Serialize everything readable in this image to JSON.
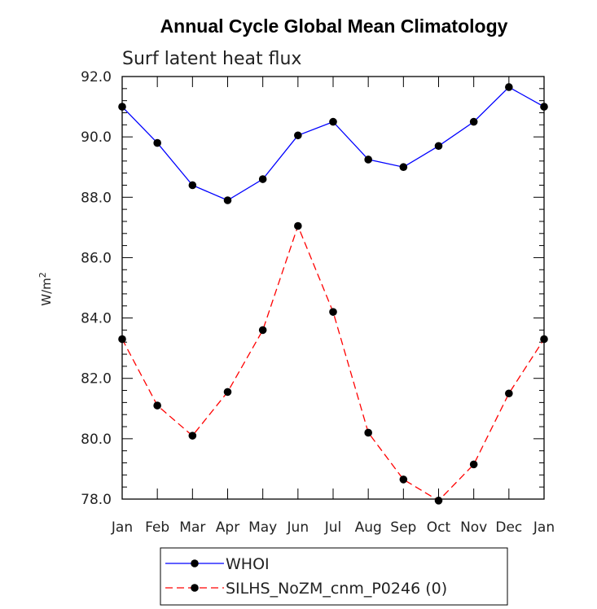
{
  "chart_data": {
    "type": "line",
    "title": "Annual Cycle Global Mean Climatology",
    "subtitle": "Surf latent heat flux",
    "ylabel_base": "W/m",
    "ylabel_exp": "2",
    "xlabel": "",
    "categories": [
      "Jan",
      "Feb",
      "Mar",
      "Apr",
      "May",
      "Jun",
      "Jul",
      "Aug",
      "Sep",
      "Oct",
      "Nov",
      "Dec",
      "Jan"
    ],
    "ylim": [
      78,
      92
    ],
    "yticks": [
      "78.0",
      "80.0",
      "82.0",
      "84.0",
      "86.0",
      "88.0",
      "90.0",
      "92.0"
    ],
    "series": [
      {
        "name": "WHOI",
        "color": "#0000ff",
        "dashed": false,
        "values": [
          91.0,
          89.8,
          88.4,
          87.9,
          88.6,
          90.05,
          90.5,
          89.25,
          89.0,
          89.7,
          90.5,
          91.65,
          91.0
        ]
      },
      {
        "name": "SILHS_NoZM_cnm_P0246 (0)",
        "color": "#ff0000",
        "dashed": true,
        "values": [
          83.3,
          81.1,
          80.1,
          81.55,
          83.6,
          87.05,
          84.2,
          80.2,
          78.65,
          77.95,
          79.15,
          81.5,
          83.3
        ]
      }
    ],
    "legend_position": "bottom-center"
  }
}
